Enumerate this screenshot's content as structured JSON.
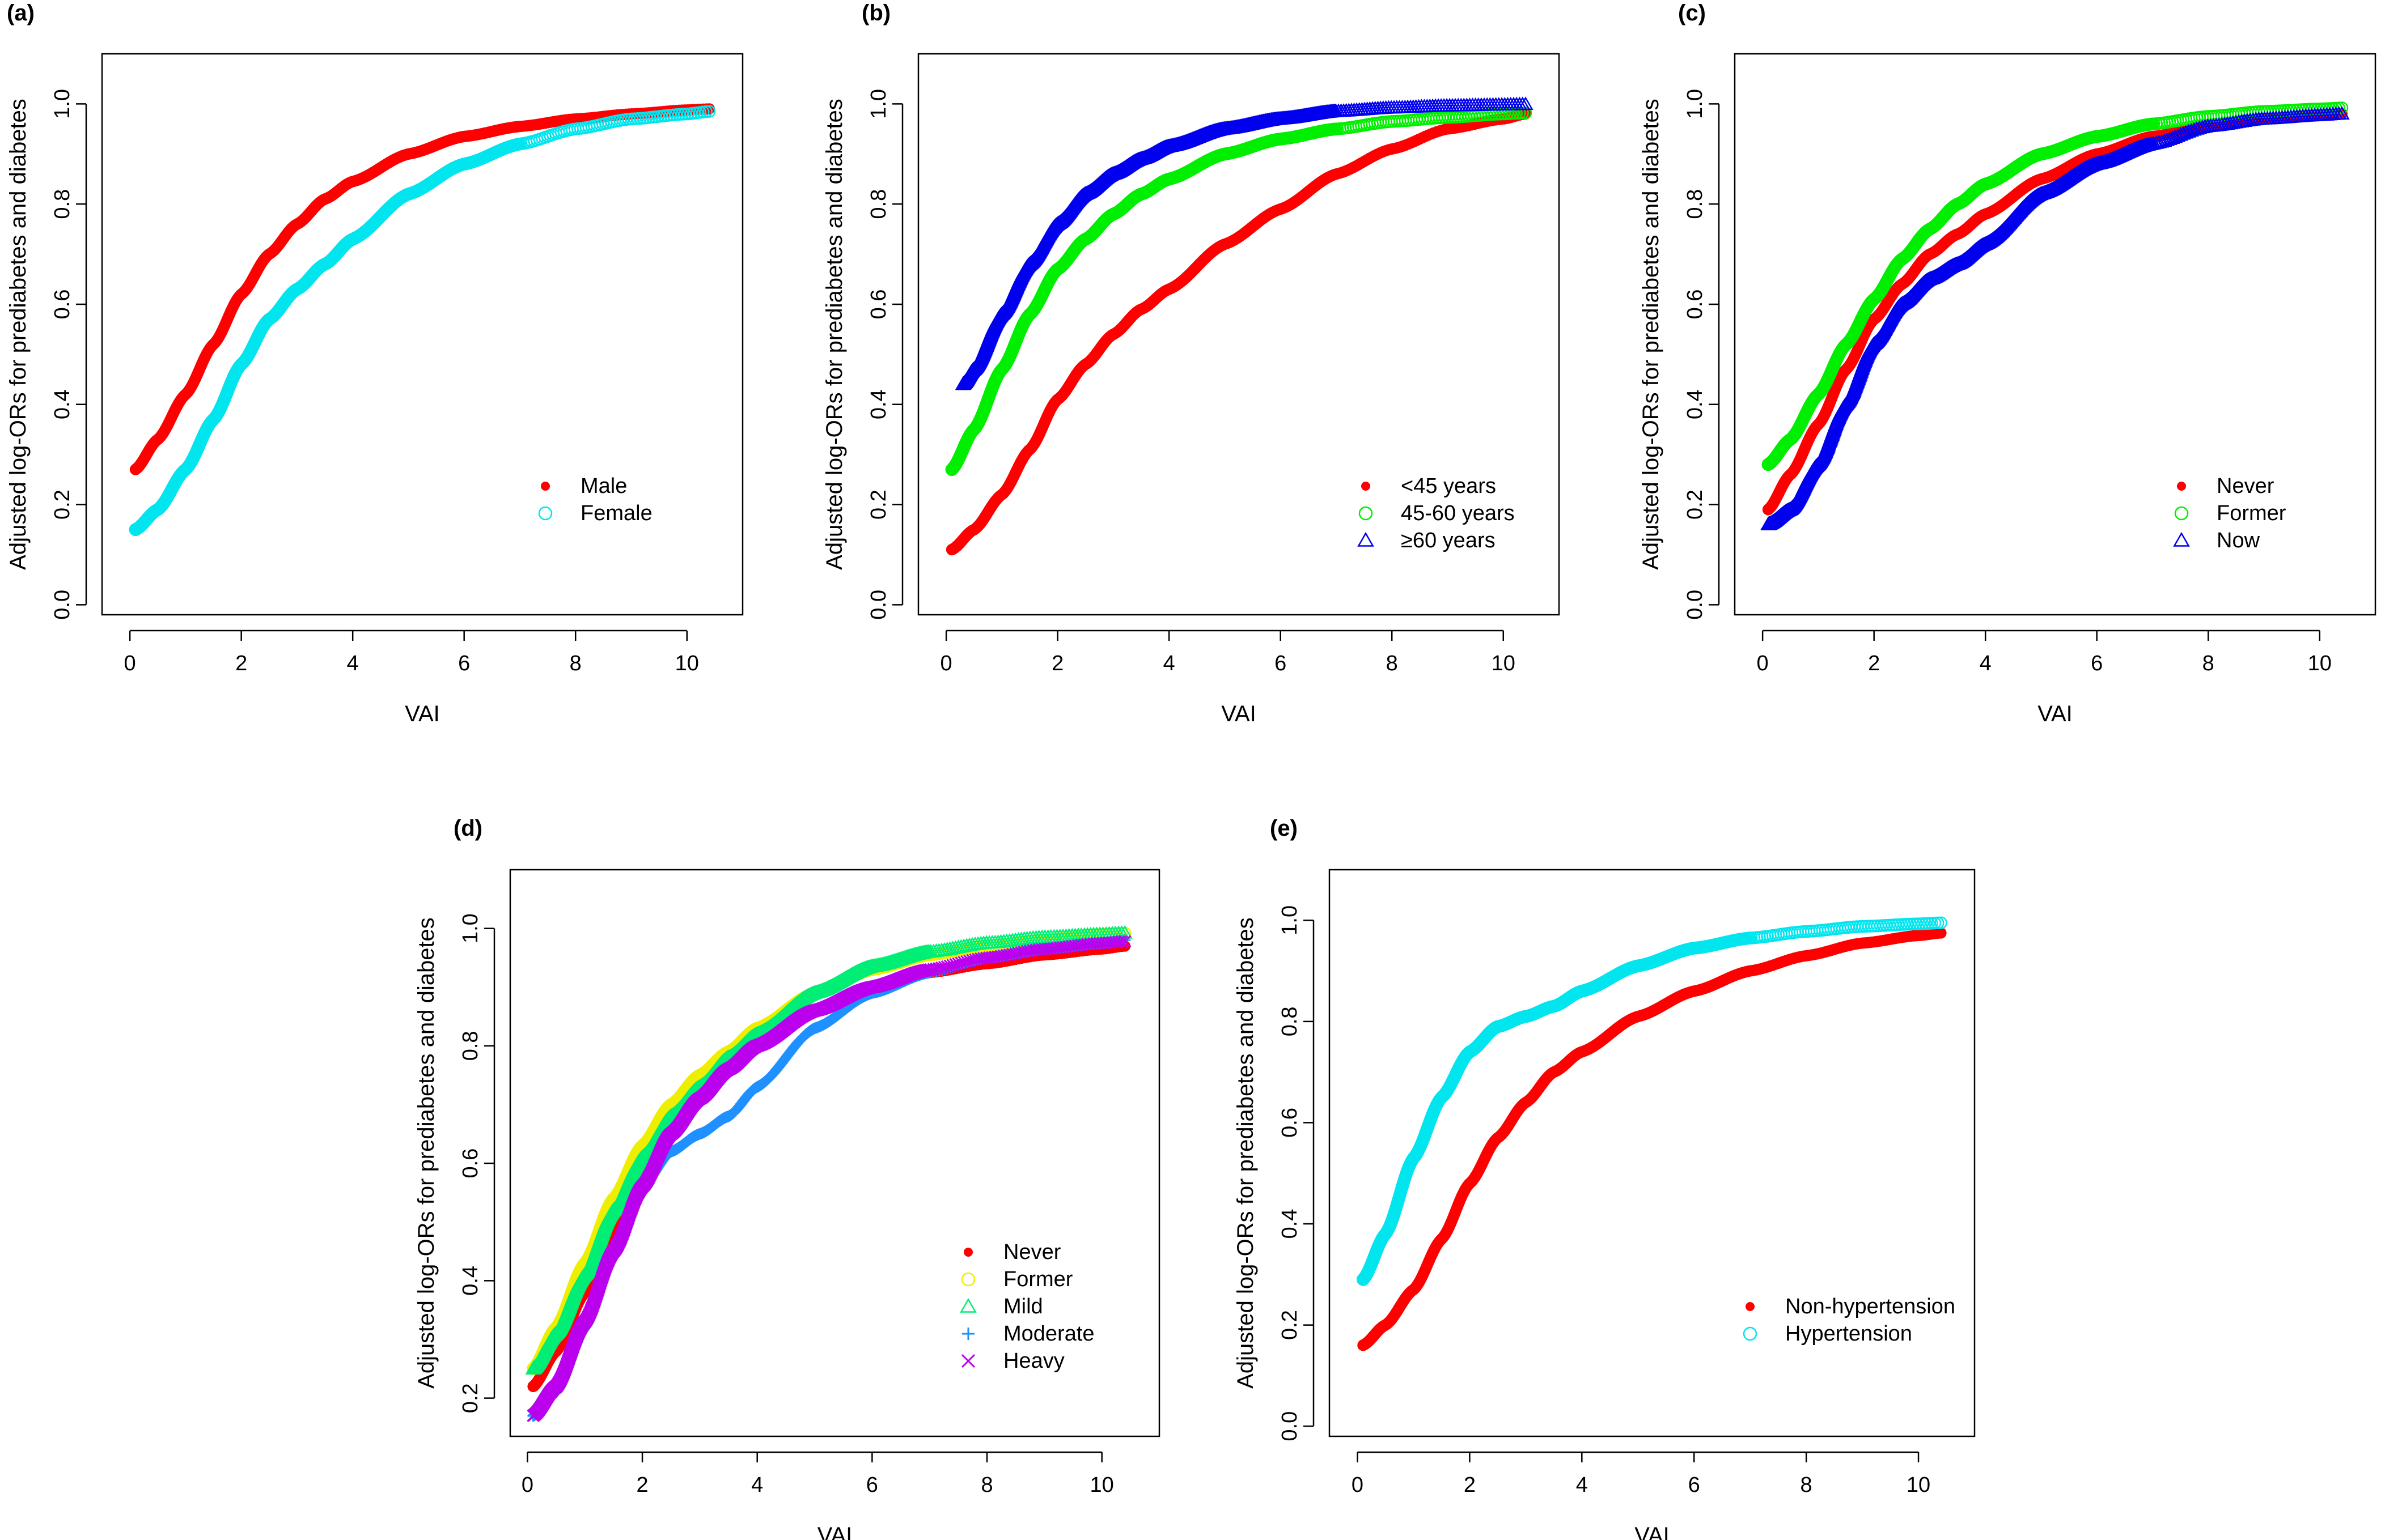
{
  "chart_data": [
    {
      "type": "scatter",
      "panel_label": "(a)",
      "xlabel": "VAI",
      "ylabel": "Adjusted log-ORs for prediabetes and diabetes",
      "xlim": [
        -0.5,
        11.0
      ],
      "ylim": [
        -0.02,
        1.1
      ],
      "xticks": [
        0,
        2,
        4,
        6,
        8,
        10
      ],
      "yticks": [
        0.0,
        0.2,
        0.4,
        0.6,
        0.8,
        1.0
      ],
      "xtick_labels": [
        "0",
        "2",
        "4",
        "6",
        "8",
        "10"
      ],
      "ytick_labels": [
        "0.0",
        "0.2",
        "0.4",
        "0.6",
        "0.8",
        "1.0"
      ],
      "legend_position": "bottom-right",
      "series": [
        {
          "name": "Male",
          "color": "#ff0000",
          "marker": "dot",
          "x_range": [
            0.1,
            10.4
          ],
          "x": [
            0.1,
            0.5,
            1.0,
            1.5,
            2.0,
            2.5,
            3.0,
            3.5,
            4.0,
            5.0,
            6.0,
            7.0,
            8.0,
            9.0,
            10.0,
            10.4
          ],
          "y": [
            0.27,
            0.33,
            0.42,
            0.52,
            0.62,
            0.7,
            0.76,
            0.81,
            0.845,
            0.9,
            0.935,
            0.955,
            0.97,
            0.98,
            0.988,
            0.99
          ]
        },
        {
          "name": "Female",
          "color": "#00e5ee",
          "marker": "open-circle",
          "x_range": [
            0.1,
            10.4
          ],
          "x": [
            0.1,
            0.5,
            1.0,
            1.5,
            2.0,
            2.5,
            3.0,
            3.5,
            4.0,
            5.0,
            6.0,
            7.0,
            8.0,
            9.0,
            10.0,
            10.4
          ],
          "y": [
            0.15,
            0.19,
            0.27,
            0.37,
            0.48,
            0.57,
            0.63,
            0.68,
            0.73,
            0.82,
            0.88,
            0.92,
            0.95,
            0.97,
            0.98,
            0.985
          ]
        }
      ]
    },
    {
      "type": "scatter",
      "panel_label": "(b)",
      "xlabel": "VAI",
      "ylabel": "Adjusted log-ORs for prediabetes and diabetes",
      "xlim": [
        -0.5,
        11.0
      ],
      "ylim": [
        -0.02,
        1.1
      ],
      "xticks": [
        0,
        2,
        4,
        6,
        8,
        10
      ],
      "yticks": [
        0.0,
        0.2,
        0.4,
        0.6,
        0.8,
        1.0
      ],
      "xtick_labels": [
        "0",
        "2",
        "4",
        "6",
        "8",
        "10"
      ],
      "ytick_labels": [
        "0.0",
        "0.2",
        "0.4",
        "0.6",
        "0.8",
        "1.0"
      ],
      "legend_position": "bottom-right",
      "series": [
        {
          "name": "<45 years",
          "color": "#ff0000",
          "marker": "dot",
          "x_range": [
            0.1,
            10.4
          ],
          "x": [
            0.1,
            0.5,
            1.0,
            1.5,
            2.0,
            2.5,
            3.0,
            3.5,
            4.0,
            5.0,
            6.0,
            7.0,
            8.0,
            9.0,
            10.0,
            10.4
          ],
          "y": [
            0.11,
            0.15,
            0.22,
            0.31,
            0.41,
            0.48,
            0.54,
            0.59,
            0.63,
            0.72,
            0.79,
            0.86,
            0.91,
            0.95,
            0.97,
            0.98
          ]
        },
        {
          "name": "45-60 years",
          "color": "#00ee00",
          "marker": "open-circle",
          "x_range": [
            0.1,
            10.4
          ],
          "x": [
            0.1,
            0.5,
            1.0,
            1.5,
            2.0,
            2.5,
            3.0,
            3.5,
            4.0,
            5.0,
            6.0,
            7.0,
            8.0,
            9.0,
            10.0,
            10.4
          ],
          "y": [
            0.27,
            0.35,
            0.47,
            0.58,
            0.67,
            0.73,
            0.78,
            0.82,
            0.85,
            0.9,
            0.93,
            0.95,
            0.965,
            0.973,
            0.98,
            0.982
          ]
        },
        {
          "name": "≥60 years",
          "color": "#0000ee",
          "marker": "open-triangle",
          "x_range": [
            0.3,
            10.4
          ],
          "x": [
            0.3,
            0.5,
            1.0,
            1.5,
            2.0,
            2.5,
            3.0,
            3.5,
            4.0,
            5.0,
            6.0,
            7.0,
            8.0,
            9.0,
            10.0,
            10.4
          ],
          "y": [
            0.44,
            0.47,
            0.58,
            0.68,
            0.76,
            0.82,
            0.86,
            0.89,
            0.915,
            0.95,
            0.97,
            0.985,
            0.992,
            0.996,
            0.998,
            0.999
          ]
        }
      ]
    },
    {
      "type": "scatter",
      "panel_label": "(c)",
      "xlabel": "VAI",
      "ylabel": "Adjusted log-ORs for prediabetes and diabetes",
      "xlim": [
        -0.5,
        11.0
      ],
      "ylim": [
        -0.02,
        1.1
      ],
      "xticks": [
        0,
        2,
        4,
        6,
        8,
        10
      ],
      "yticks": [
        0.0,
        0.2,
        0.4,
        0.6,
        0.8,
        1.0
      ],
      "xtick_labels": [
        "0",
        "2",
        "4",
        "6",
        "8",
        "10"
      ],
      "ytick_labels": [
        "0.0",
        "0.2",
        "0.4",
        "0.6",
        "0.8",
        "1.0"
      ],
      "legend_position": "bottom-right",
      "series": [
        {
          "name": "Never",
          "color": "#ff0000",
          "marker": "dot",
          "x_range": [
            0.1,
            10.4
          ],
          "x": [
            0.1,
            0.5,
            1.0,
            1.5,
            2.0,
            2.5,
            3.0,
            3.5,
            4.0,
            5.0,
            6.0,
            7.0,
            8.0,
            9.0,
            10.0,
            10.4
          ],
          "y": [
            0.19,
            0.26,
            0.36,
            0.47,
            0.57,
            0.64,
            0.7,
            0.74,
            0.78,
            0.85,
            0.9,
            0.935,
            0.955,
            0.97,
            0.978,
            0.98
          ]
        },
        {
          "name": "Former",
          "color": "#00ee00",
          "marker": "open-circle",
          "x_range": [
            0.1,
            10.4
          ],
          "x": [
            0.1,
            0.5,
            1.0,
            1.5,
            2.0,
            2.5,
            3.0,
            3.5,
            4.0,
            5.0,
            6.0,
            7.0,
            8.0,
            9.0,
            10.0,
            10.4
          ],
          "y": [
            0.28,
            0.33,
            0.42,
            0.52,
            0.61,
            0.69,
            0.75,
            0.8,
            0.84,
            0.9,
            0.935,
            0.96,
            0.975,
            0.985,
            0.99,
            0.992
          ]
        },
        {
          "name": "Now",
          "color": "#0000ee",
          "marker": "open-triangle",
          "x_range": [
            0.1,
            10.4
          ],
          "x": [
            0.1,
            0.5,
            1.0,
            1.5,
            2.0,
            2.5,
            3.0,
            3.5,
            4.0,
            5.0,
            6.0,
            7.0,
            8.0,
            9.0,
            10.0,
            10.4
          ],
          "y": [
            0.16,
            0.19,
            0.28,
            0.4,
            0.52,
            0.6,
            0.65,
            0.68,
            0.72,
            0.82,
            0.88,
            0.92,
            0.955,
            0.97,
            0.977,
            0.98
          ]
        }
      ]
    },
    {
      "type": "scatter",
      "panel_label": "(d)",
      "xlabel": "VAI",
      "ylabel": "Adjusted log-ORs for prediabetes and diabetes",
      "xlim": [
        -0.3,
        11.0
      ],
      "ylim": [
        0.135,
        1.1
      ],
      "xticks": [
        0,
        2,
        4,
        6,
        8,
        10
      ],
      "yticks": [
        0.2,
        0.4,
        0.6,
        0.8,
        1.0
      ],
      "xtick_labels": [
        "0",
        "2",
        "4",
        "6",
        "8",
        "10"
      ],
      "ytick_labels": [
        "0.2",
        "0.4",
        "0.6",
        "0.8",
        "1.0"
      ],
      "legend_position": "bottom-right",
      "series": [
        {
          "name": "Never",
          "color": "#ff0000",
          "marker": "dot",
          "x_range": [
            0.1,
            10.4
          ],
          "x": [
            0.1,
            0.5,
            1.0,
            1.5,
            2.0,
            2.5,
            3.0,
            3.5,
            4.0,
            5.0,
            6.0,
            7.0,
            8.0,
            9.0,
            10.0,
            10.4
          ],
          "y": [
            0.22,
            0.28,
            0.38,
            0.49,
            0.58,
            0.65,
            0.71,
            0.76,
            0.8,
            0.86,
            0.9,
            0.925,
            0.94,
            0.955,
            0.965,
            0.97
          ]
        },
        {
          "name": "Former",
          "color": "#eeee00",
          "marker": "open-circle",
          "x_range": [
            0.1,
            10.4
          ],
          "x": [
            0.1,
            0.5,
            1.0,
            1.5,
            2.0,
            2.5,
            3.0,
            3.5,
            4.0,
            5.0,
            6.0,
            7.0,
            8.0,
            9.0,
            10.0,
            10.4
          ],
          "y": [
            0.25,
            0.32,
            0.43,
            0.54,
            0.63,
            0.7,
            0.75,
            0.79,
            0.83,
            0.89,
            0.93,
            0.955,
            0.97,
            0.98,
            0.99,
            0.992
          ]
        },
        {
          "name": "Mild",
          "color": "#00ee76",
          "marker": "open-triangle",
          "x_range": [
            0.1,
            10.4
          ],
          "x": [
            0.1,
            0.5,
            1.0,
            1.5,
            2.0,
            2.5,
            3.0,
            3.5,
            4.0,
            5.0,
            6.0,
            7.0,
            8.0,
            9.0,
            10.0,
            10.4
          ],
          "y": [
            0.25,
            0.31,
            0.41,
            0.52,
            0.61,
            0.68,
            0.73,
            0.78,
            0.82,
            0.89,
            0.935,
            0.96,
            0.975,
            0.985,
            0.99,
            0.992
          ]
        },
        {
          "name": "Moderate",
          "color": "#1e90ff",
          "marker": "plus",
          "x_range": [
            0.1,
            10.4
          ],
          "x": [
            0.1,
            0.5,
            1.0,
            1.5,
            2.0,
            2.5,
            3.0,
            3.5,
            4.0,
            5.0,
            6.0,
            7.0,
            8.0,
            9.0,
            10.0,
            10.4
          ],
          "y": [
            0.17,
            0.21,
            0.32,
            0.45,
            0.56,
            0.62,
            0.65,
            0.68,
            0.73,
            0.83,
            0.89,
            0.925,
            0.95,
            0.965,
            0.975,
            0.98
          ]
        },
        {
          "name": "Heavy",
          "color": "#bb00ee",
          "marker": "cross",
          "x_range": [
            0.1,
            10.4
          ],
          "x": [
            0.1,
            0.5,
            1.0,
            1.5,
            2.0,
            2.5,
            3.0,
            3.5,
            4.0,
            5.0,
            6.0,
            7.0,
            8.0,
            9.0,
            10.0,
            10.4
          ],
          "y": [
            0.17,
            0.22,
            0.33,
            0.45,
            0.56,
            0.65,
            0.71,
            0.76,
            0.8,
            0.86,
            0.9,
            0.93,
            0.95,
            0.965,
            0.975,
            0.978
          ]
        }
      ]
    },
    {
      "type": "scatter",
      "panel_label": "(e)",
      "xlabel": "VAI",
      "ylabel": "Adjusted log-ORs for prediabetes and diabetes",
      "xlim": [
        -0.5,
        11.0
      ],
      "ylim": [
        -0.02,
        1.1
      ],
      "xticks": [
        0,
        2,
        4,
        6,
        8,
        10
      ],
      "yticks": [
        0.0,
        0.2,
        0.4,
        0.6,
        0.8,
        1.0
      ],
      "xtick_labels": [
        "0",
        "2",
        "4",
        "6",
        "8",
        "10"
      ],
      "ytick_labels": [
        "0.0",
        "0.2",
        "0.4",
        "0.6",
        "0.8",
        "1.0"
      ],
      "legend_position": "bottom-right",
      "series": [
        {
          "name": "Non-hypertension",
          "color": "#ff0000",
          "marker": "dot",
          "x_range": [
            0.1,
            10.4
          ],
          "x": [
            0.1,
            0.5,
            1.0,
            1.5,
            2.0,
            2.5,
            3.0,
            3.5,
            4.0,
            5.0,
            6.0,
            7.0,
            8.0,
            9.0,
            10.0,
            10.4
          ],
          "y": [
            0.16,
            0.2,
            0.27,
            0.37,
            0.48,
            0.57,
            0.64,
            0.7,
            0.74,
            0.81,
            0.86,
            0.9,
            0.93,
            0.955,
            0.97,
            0.975
          ]
        },
        {
          "name": "Hypertension",
          "color": "#00e5ee",
          "marker": "open-circle",
          "x_range": [
            0.1,
            10.4
          ],
          "x": [
            0.1,
            0.5,
            1.0,
            1.5,
            2.0,
            2.5,
            3.0,
            3.5,
            4.0,
            5.0,
            6.0,
            7.0,
            8.0,
            9.0,
            10.0,
            10.4
          ],
          "y": [
            0.29,
            0.38,
            0.53,
            0.65,
            0.74,
            0.79,
            0.81,
            0.83,
            0.86,
            0.91,
            0.945,
            0.965,
            0.978,
            0.988,
            0.993,
            0.995
          ]
        }
      ]
    }
  ]
}
